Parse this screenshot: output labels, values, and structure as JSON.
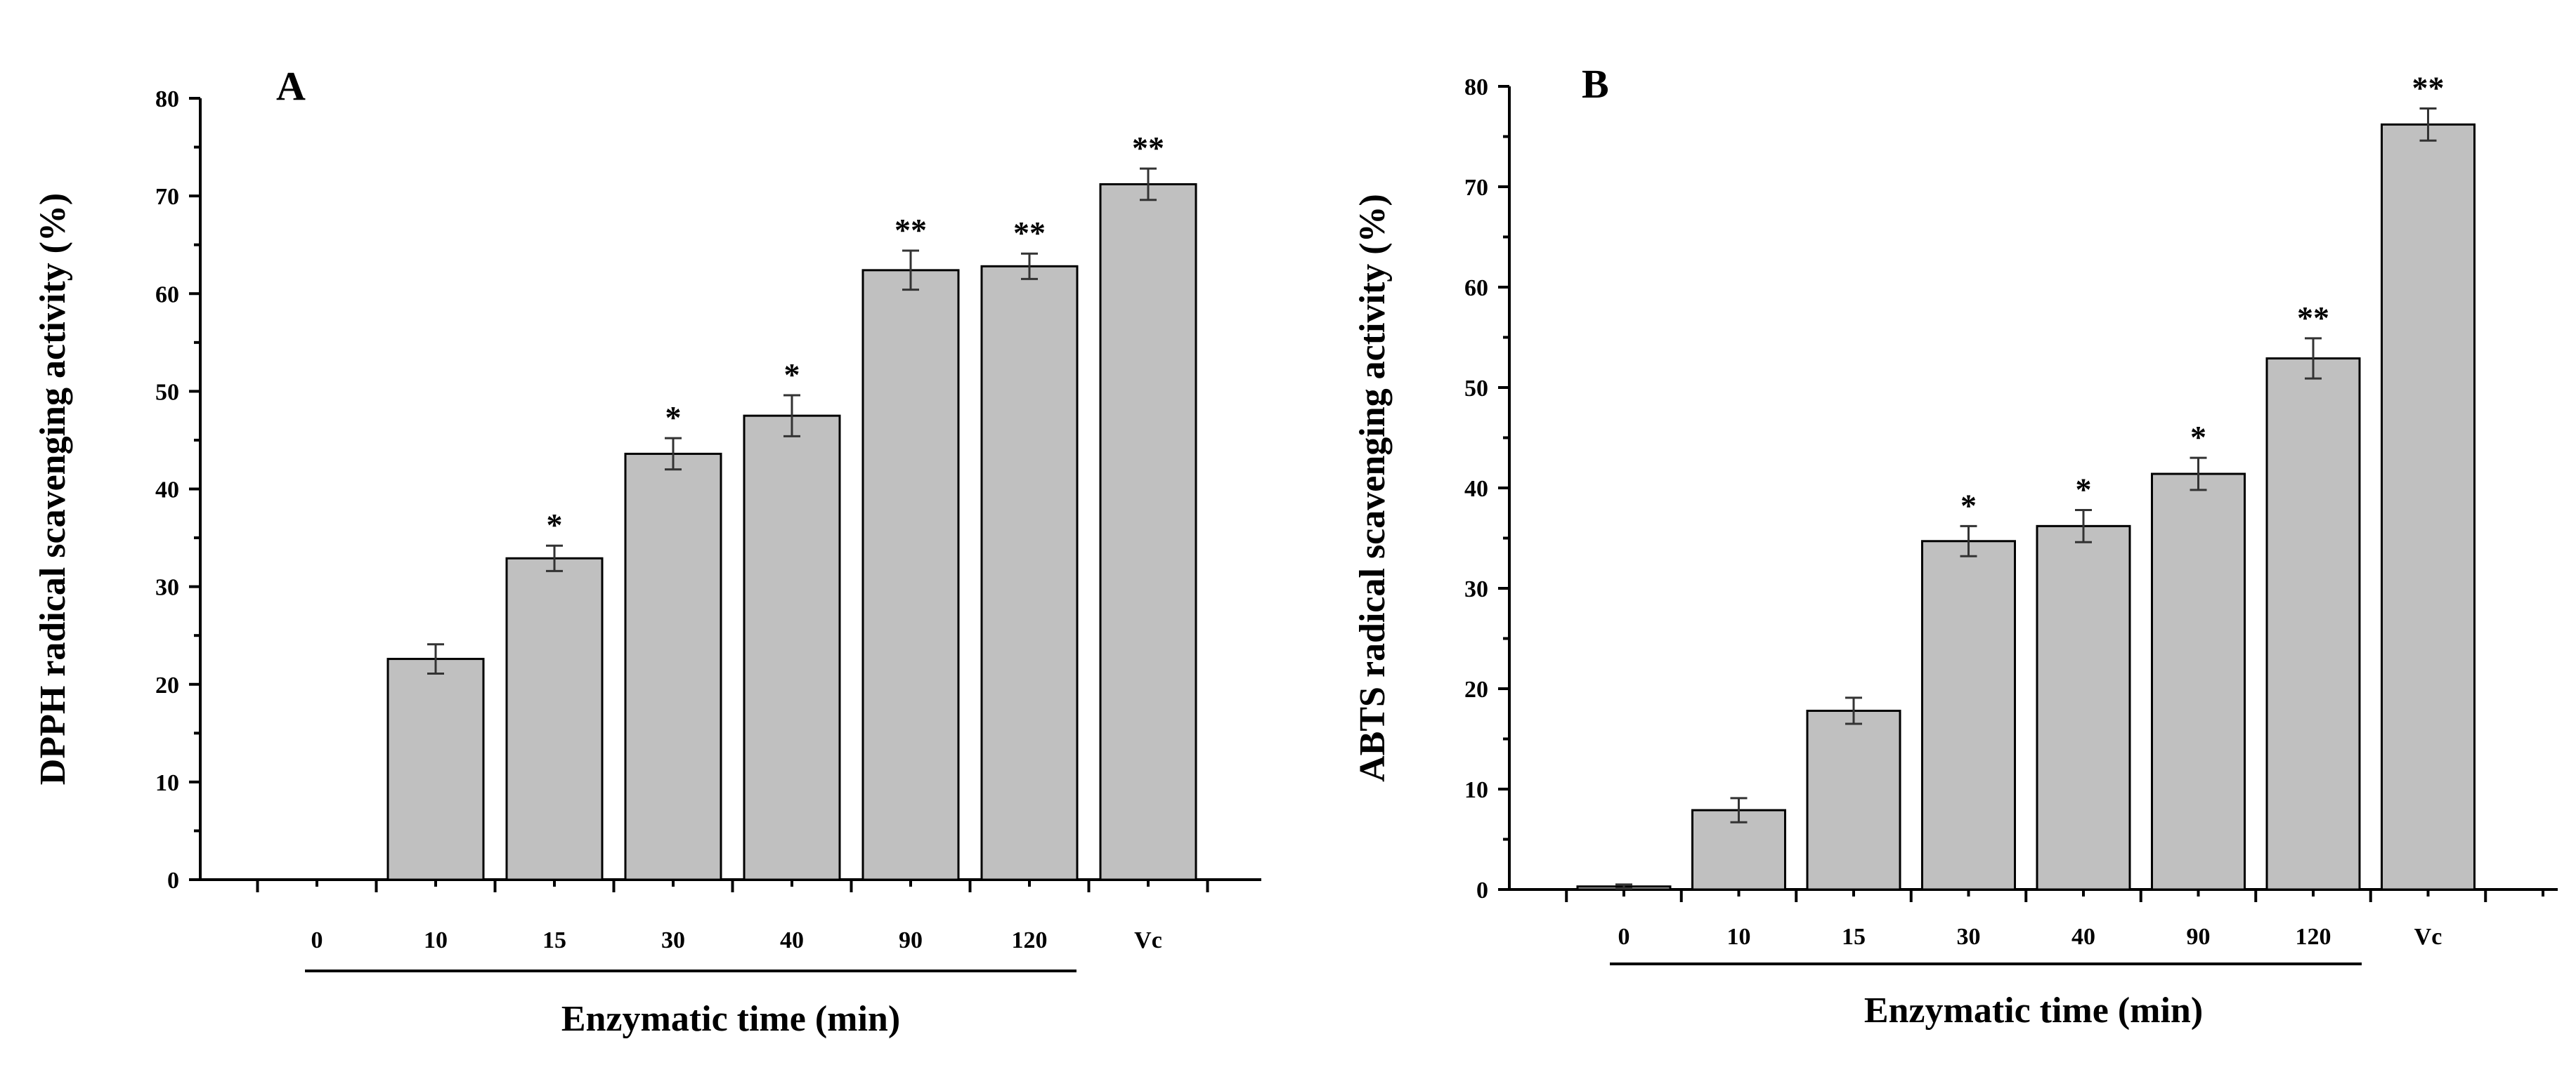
{
  "figure": {
    "title": ""
  },
  "chart_data": [
    {
      "type": "bar",
      "panel_label": "A",
      "title": "",
      "categories": [
        "0",
        "10",
        "15",
        "30",
        "40",
        "90",
        "120",
        "Vc"
      ],
      "values": [
        0,
        22.6,
        32.9,
        43.6,
        47.5,
        62.4,
        62.8,
        71.2
      ],
      "errors": [
        0,
        1.5,
        1.3,
        1.6,
        2.1,
        2.0,
        1.3,
        1.6
      ],
      "significance": [
        "",
        "",
        "*",
        "*",
        "*",
        "**",
        "**",
        "**"
      ],
      "xlabel": "Enzymatic time (min)",
      "ylabel": "DPPH radical scavenging activity (%)",
      "ylim": [
        0,
        80
      ],
      "yticks": [
        "0",
        "10",
        "20",
        "30",
        "40",
        "50",
        "60",
        "70",
        "80"
      ],
      "group_underline": "0-120",
      "bar_color": "#c0c0c0",
      "grid": false
    },
    {
      "type": "bar",
      "panel_label": "B",
      "title": "",
      "categories": [
        "0",
        "10",
        "15",
        "30",
        "40",
        "90",
        "120",
        "Vc"
      ],
      "values": [
        0.3,
        7.9,
        17.8,
        34.7,
        36.2,
        41.4,
        52.9,
        76.2
      ],
      "errors": [
        0.2,
        1.2,
        1.3,
        1.5,
        1.6,
        1.6,
        2.0,
        1.6
      ],
      "significance": [
        "",
        "",
        "",
        "*",
        "*",
        "*",
        "**",
        "**"
      ],
      "xlabel": "Enzymatic time (min)",
      "ylabel": "ABTS radical scavenging activity (%)",
      "ylim": [
        0,
        80
      ],
      "yticks": [
        "0",
        "10",
        "20",
        "30",
        "40",
        "50",
        "60",
        "70",
        "80"
      ],
      "group_underline": "0-120",
      "bar_color": "#c0c0c0",
      "grid": false
    }
  ]
}
